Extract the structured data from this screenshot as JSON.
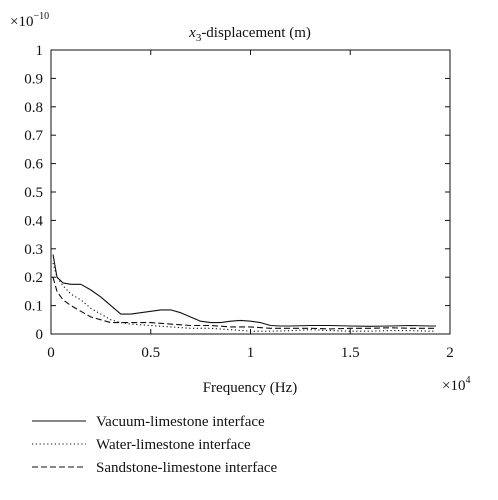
{
  "chart_data": {
    "type": "line",
    "title_var": "x",
    "title_sub": "3",
    "title_rest": "-displacement (m)",
    "xlabel": "Frequency (Hz)",
    "ylabel": "",
    "x_exponent_base": "×10",
    "x_exponent_power": "4",
    "y_exponent_base": "×10",
    "y_exponent_power": "−10",
    "xlim": [
      0,
      2
    ],
    "ylim": [
      0,
      1
    ],
    "xticks": [
      0,
      0.5,
      1,
      1.5,
      2
    ],
    "xtick_labels": [
      "0",
      "0.5",
      "1",
      "1.5",
      "2"
    ],
    "yticks": [
      0,
      0.1,
      0.2,
      0.3,
      0.4,
      0.5,
      0.6,
      0.7,
      0.8,
      0.9,
      1
    ],
    "ytick_labels": [
      "0",
      "0.1",
      "0.2",
      "0.3",
      "0.4",
      "0.5",
      "0.6",
      "0.7",
      "0.8",
      "0.9",
      "1"
    ],
    "grid": false,
    "legend_position": "below",
    "series": [
      {
        "name": "Vacuum-limestone interface",
        "style": "solid",
        "color": "#111111",
        "x": [
          0.01,
          0.03,
          0.06,
          0.1,
          0.15,
          0.2,
          0.25,
          0.3,
          0.35,
          0.4,
          0.45,
          0.5,
          0.55,
          0.6,
          0.65,
          0.7,
          0.75,
          0.8,
          0.85,
          0.9,
          0.95,
          1.0,
          1.05,
          1.1,
          1.15,
          1.2,
          1.3,
          1.4,
          1.5,
          1.6,
          1.7,
          1.8,
          1.9,
          1.93
        ],
        "y": [
          0.28,
          0.2,
          0.18,
          0.175,
          0.175,
          0.155,
          0.13,
          0.1,
          0.07,
          0.07,
          0.075,
          0.08,
          0.085,
          0.085,
          0.075,
          0.06,
          0.045,
          0.04,
          0.04,
          0.045,
          0.048,
          0.045,
          0.04,
          0.03,
          0.028,
          0.028,
          0.03,
          0.03,
          0.028,
          0.027,
          0.028,
          0.03,
          0.028,
          0.028
        ]
      },
      {
        "name": "Water-limestone interface",
        "style": "dotted",
        "color": "#111111",
        "x": [
          0.01,
          0.03,
          0.06,
          0.1,
          0.15,
          0.2,
          0.25,
          0.3,
          0.35,
          0.4,
          0.5,
          0.6,
          0.7,
          0.8,
          0.9,
          1.0,
          1.1,
          1.2,
          1.3,
          1.4,
          1.5,
          1.6,
          1.7,
          1.8,
          1.9,
          1.93
        ],
        "y": [
          0.25,
          0.2,
          0.17,
          0.14,
          0.12,
          0.09,
          0.07,
          0.05,
          0.04,
          0.035,
          0.03,
          0.025,
          0.02,
          0.02,
          0.015,
          0.01,
          0.01,
          0.012,
          0.015,
          0.012,
          0.01,
          0.01,
          0.012,
          0.012,
          0.01,
          0.01
        ]
      },
      {
        "name": "Sandstone-limestone interface",
        "style": "dashed",
        "color": "#111111",
        "x": [
          0.01,
          0.03,
          0.06,
          0.1,
          0.15,
          0.2,
          0.25,
          0.3,
          0.35,
          0.4,
          0.5,
          0.6,
          0.7,
          0.8,
          0.9,
          1.0,
          1.1,
          1.2,
          1.3,
          1.4,
          1.5,
          1.6,
          1.7,
          1.8,
          1.9,
          1.93
        ],
        "y": [
          0.2,
          0.15,
          0.12,
          0.1,
          0.08,
          0.06,
          0.05,
          0.04,
          0.04,
          0.04,
          0.04,
          0.035,
          0.03,
          0.03,
          0.025,
          0.025,
          0.02,
          0.02,
          0.02,
          0.018,
          0.02,
          0.02,
          0.022,
          0.02,
          0.02,
          0.02
        ]
      }
    ]
  }
}
